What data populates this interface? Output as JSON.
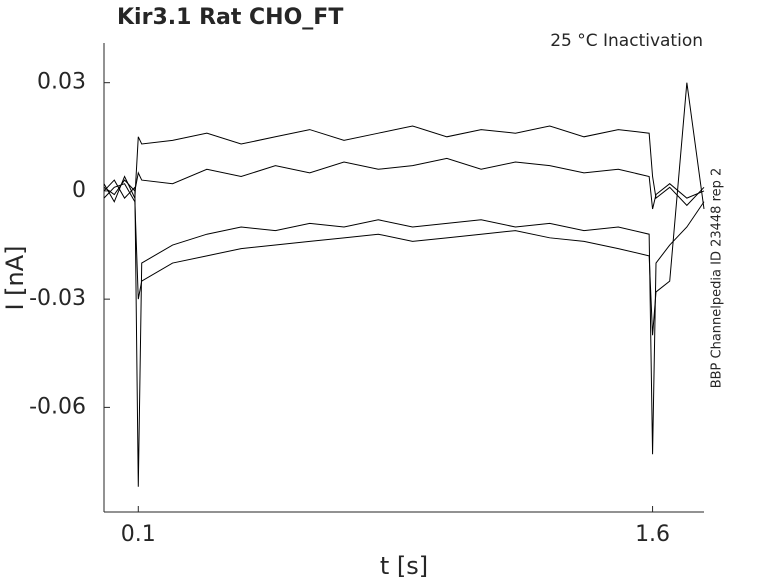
{
  "chart_data": {
    "type": "line",
    "title": "Kir3.1  Rat  CHO_FT",
    "annotation": "25 °C  Inactivation",
    "side_note": "BBP Channelpedia ID 23448 rep 2",
    "xlabel": "t [s]",
    "ylabel": "I [nA]",
    "xlim": [
      0,
      1.75
    ],
    "xticks": [
      0.1,
      1.6
    ],
    "ylim": [
      -0.089,
      0.041
    ],
    "yticks": [
      -0.06,
      -0.03,
      0,
      0.03
    ],
    "x": [
      0,
      0.03,
      0.06,
      0.09,
      0.1,
      0.11,
      0.2,
      0.3,
      0.4,
      0.5,
      0.6,
      0.7,
      0.8,
      0.9,
      1.0,
      1.1,
      1.2,
      1.3,
      1.4,
      1.5,
      1.59,
      1.6,
      1.61,
      1.65,
      1.7,
      1.75
    ],
    "series": [
      {
        "color": "#000000",
        "values": [
          0.002,
          -0.003,
          0.004,
          -0.002,
          0.015,
          0.013,
          0.014,
          0.016,
          0.013,
          0.015,
          0.017,
          0.014,
          0.016,
          0.018,
          0.015,
          0.017,
          0.016,
          0.018,
          0.015,
          0.017,
          0.016,
          0.004,
          -0.002,
          0.001,
          -0.004,
          0.001
        ]
      },
      {
        "color": "#000000",
        "values": [
          0,
          0.003,
          -0.002,
          0.001,
          -0.082,
          -0.02,
          -0.015,
          -0.012,
          -0.01,
          -0.011,
          -0.009,
          -0.01,
          -0.008,
          -0.01,
          -0.009,
          -0.008,
          -0.01,
          -0.009,
          -0.011,
          -0.01,
          -0.012,
          -0.073,
          -0.02,
          -0.015,
          -0.01,
          -0.003
        ]
      },
      {
        "color": "#000000",
        "values": [
          -0.002,
          0.001,
          0.002,
          -0.003,
          -0.03,
          -0.025,
          -0.02,
          -0.018,
          -0.016,
          -0.015,
          -0.014,
          -0.013,
          -0.012,
          -0.014,
          -0.013,
          -0.012,
          -0.011,
          -0.013,
          -0.014,
          -0.016,
          -0.018,
          -0.04,
          -0.028,
          -0.025,
          0.03,
          -0.005
        ]
      },
      {
        "color": "#000000",
        "values": [
          0.001,
          -0.001,
          0.003,
          0,
          0.005,
          0.003,
          0.002,
          0.006,
          0.004,
          0.007,
          0.005,
          0.008,
          0.006,
          0.007,
          0.009,
          0.006,
          0.008,
          0.007,
          0.005,
          0.006,
          0.004,
          -0.005,
          -0.001,
          0.002,
          -0.002,
          0
        ]
      }
    ]
  }
}
